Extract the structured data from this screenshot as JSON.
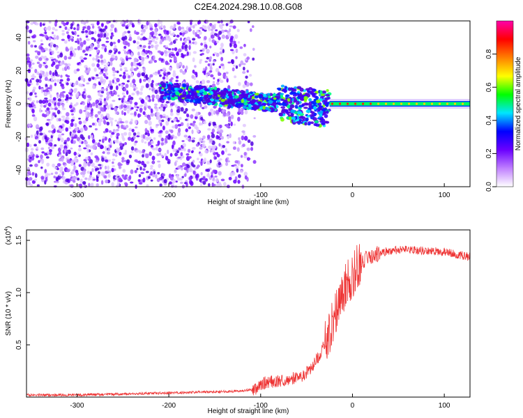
{
  "title": "C2E4.2024.298.10.08.G08",
  "chart_data": [
    {
      "type": "heatmap",
      "xlabel": "Height of straight line (km)",
      "ylabel": "Frequency (Hz)",
      "xlim": [
        -355,
        128
      ],
      "ylim": [
        -50,
        50
      ],
      "xticks": [
        -300,
        -200,
        -100,
        0,
        100
      ],
      "xtick_labels": [
        "-300",
        "-200",
        "-100",
        "0",
        "100"
      ],
      "yticks": [
        -40,
        -20,
        0,
        20,
        40
      ],
      "ytick_labels": [
        "-40",
        "-20",
        "0",
        "20",
        "40"
      ],
      "grid": false,
      "description_free_regions": {
        "noise_region_x": [
          -355,
          -125
        ],
        "signal_band_x": [
          -210,
          -25
        ],
        "tone_x": [
          -25,
          128
        ],
        "tone_frequency": 0
      },
      "colorbar": {
        "label": "Normalized spectral amplitude",
        "range": [
          0,
          1
        ],
        "ticks": [
          0.0,
          0.2,
          0.4,
          0.6,
          0.8
        ],
        "tick_labels": [
          "0.0",
          "0.2",
          "0.4",
          "0.6",
          "0.8"
        ],
        "colors": [
          "#ffffff",
          "#c080ff",
          "#6a00ff",
          "#0000ff",
          "#00e5ff",
          "#00ff00",
          "#ffff00",
          "#ff8000",
          "#ff0000",
          "#ff00aa"
        ]
      }
    },
    {
      "type": "line",
      "xlabel": "Height of straight line (km)",
      "ylabel": "SNR (10 * v/v)",
      "multiplier_label": "(x10",
      "multiplier_exp": "4",
      "multiplier_close": ")",
      "xlim": [
        -355,
        128
      ],
      "ylim": [
        0,
        1.6
      ],
      "xticks": [
        -300,
        -200,
        -100,
        0,
        100
      ],
      "xtick_labels": [
        "-300",
        "-200",
        "-100",
        "0",
        "100"
      ],
      "yticks": [
        0.5,
        1.0,
        1.5
      ],
      "ytick_labels": [
        "0.5",
        "1.0",
        "1.5"
      ],
      "color": "#ee3333",
      "series": [
        {
          "x": [
            -355,
            -300,
            -250,
            -200,
            -150,
            -120,
            -105,
            -95,
            -85,
            -75,
            -65,
            -55,
            -45,
            -35,
            -28,
            -22,
            -18,
            -15,
            -12,
            -8,
            -4,
            0,
            5,
            10,
            15,
            20,
            30,
            40,
            60,
            80,
            100,
            128
          ],
          "y": [
            0.02,
            0.02,
            0.03,
            0.04,
            0.05,
            0.06,
            0.08,
            0.14,
            0.15,
            0.16,
            0.18,
            0.2,
            0.27,
            0.42,
            0.55,
            0.7,
            0.82,
            0.95,
            1.0,
            1.05,
            1.12,
            1.15,
            1.25,
            1.3,
            1.32,
            1.35,
            1.38,
            1.4,
            1.41,
            1.4,
            1.39,
            1.34
          ]
        }
      ]
    }
  ]
}
